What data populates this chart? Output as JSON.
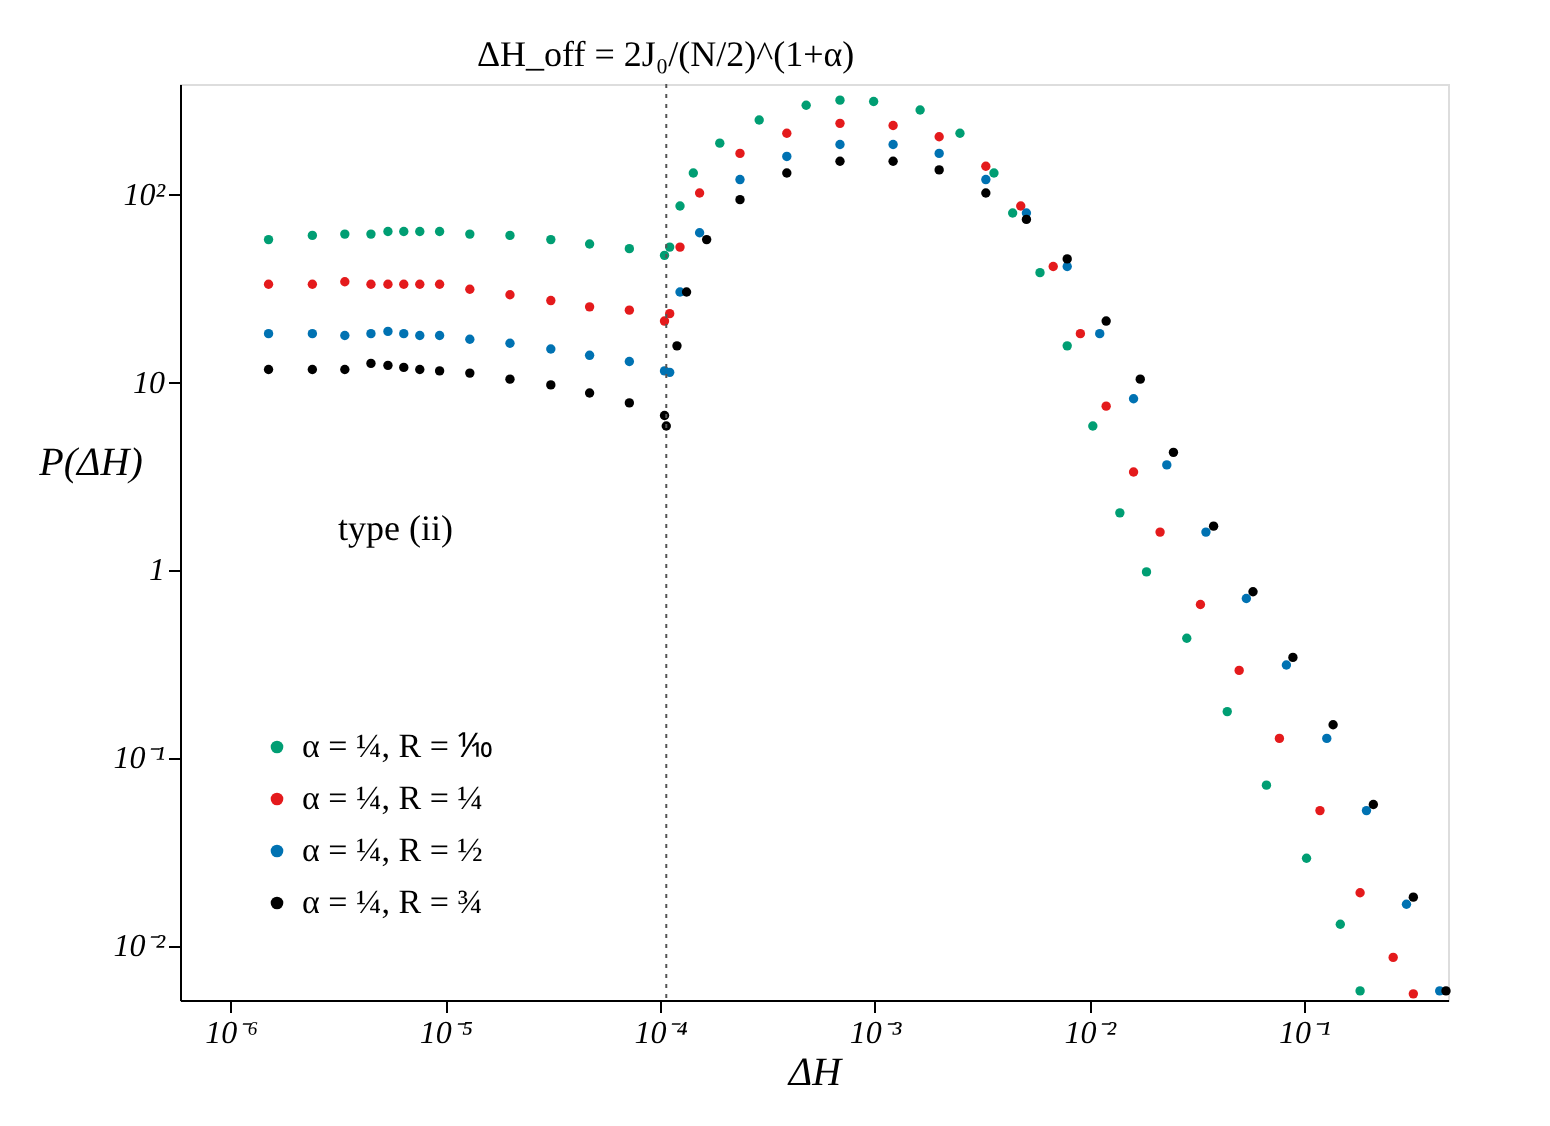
{
  "chart_data": {
    "type": "scatter",
    "xlabel": "ΔH",
    "ylabel": "P(ΔH)",
    "log": "xy",
    "grid": false,
    "legend": "bottom left",
    "marker": "circle",
    "xlim": [
      5.8e-07,
      0.47
    ],
    "ylim": [
      0.0051,
      384
    ],
    "xticks": [
      {
        "value": 1e-06,
        "label": "10⁻⁶"
      },
      {
        "value": 1e-05,
        "label": "10⁻⁵"
      },
      {
        "value": 0.0001,
        "label": "10⁻⁴"
      },
      {
        "value": 0.001,
        "label": "10⁻³"
      },
      {
        "value": 0.01,
        "label": "10⁻²"
      },
      {
        "value": 0.1,
        "label": "10⁻¹"
      }
    ],
    "yticks": [
      {
        "value": 0.01,
        "label": "10⁻²"
      },
      {
        "value": 0.1,
        "label": "10⁻¹"
      },
      1,
      10,
      {
        "value": 100,
        "label": "10²"
      }
    ],
    "ref_lines": [
      {
        "axis": "x",
        "value": 0.000107,
        "line_style": "dotted",
        "color": "#555555"
      }
    ],
    "annotations": [
      "ΔH_off = 2J₀/(N/2)^(1+α)",
      "type (ii)"
    ],
    "series": [
      {
        "name": "α = ¼, R = ⅒",
        "color": "#009e73",
        "x": [
          1.5e-06,
          2.4e-06,
          3.4e-06,
          4.5e-06,
          5.4e-06,
          6.4e-06,
          7.6e-06,
          9.4e-06,
          1.3e-05,
          2e-05,
          3.1e-05,
          4.7e-05,
          7.2e-05,
          0.000105,
          0.000111,
          0.000124,
          0.000143,
          0.00019,
          0.00029,
          0.00048,
          0.00069,
          0.00099,
          0.00163,
          0.0025,
          0.0036,
          0.0044,
          0.0059,
          0.0079,
          0.0104,
          0.0139,
          0.0185,
          0.0285,
          0.044,
          0.067,
          0.103,
          0.148,
          0.183
        ],
        "values": [
          57,
          60,
          61,
          61,
          63,
          63,
          63,
          63,
          61,
          60,
          57,
          54,
          51,
          47,
          52,
          86,
          129,
          186,
          247,
          296,
          315,
          310,
          279,
          210,
          129,
          79,
          38,
          15.5,
          5.8,
          2.0,
          0.97,
          0.43,
          0.175,
          0.071,
          0.029,
          0.0129,
          0.0057
        ]
      },
      {
        "name": "α = ¼, R = ¼",
        "color": "#e41a1c",
        "x": [
          1.5e-06,
          2.4e-06,
          3.4e-06,
          4.5e-06,
          5.4e-06,
          6.4e-06,
          7.6e-06,
          9.4e-06,
          1.3e-05,
          2e-05,
          3.1e-05,
          4.7e-05,
          7.2e-05,
          0.000105,
          0.000111,
          0.000124,
          0.000153,
          0.000236,
          0.00039,
          0.00069,
          0.00122,
          0.002,
          0.0033,
          0.0048,
          0.0068,
          0.0091,
          0.012,
          0.0161,
          0.0214,
          0.033,
          0.05,
          0.077,
          0.119,
          0.183,
          0.261,
          0.324
        ],
        "values": [
          33,
          33,
          34,
          33,
          33,
          33,
          33,
          33,
          31,
          29,
          27,
          25,
          24,
          21,
          23,
          52,
          101,
          164,
          210,
          237,
          231,
          201,
          140,
          86,
          41,
          18,
          7.4,
          3.3,
          1.58,
          0.65,
          0.29,
          0.126,
          0.052,
          0.019,
          0.0086,
          0.0055
        ]
      },
      {
        "name": "α = ¼, R = ½",
        "color": "#0072b2",
        "x": [
          1.5e-06,
          2.4e-06,
          3.4e-06,
          4.5e-06,
          5.4e-06,
          6.4e-06,
          7.6e-06,
          9.4e-06,
          1.3e-05,
          2e-05,
          3.1e-05,
          4.7e-05,
          7.2e-05,
          0.000105,
          0.000111,
          0.000124,
          0.000153,
          0.000236,
          0.00039,
          0.00069,
          0.00122,
          0.002,
          0.0033,
          0.0051,
          0.0079,
          0.0112,
          0.0161,
          0.023,
          0.035,
          0.054,
          0.083,
          0.128,
          0.196,
          0.301,
          0.43
        ],
        "values": [
          18,
          18,
          17.6,
          18,
          18.5,
          18,
          17.6,
          17.6,
          16.8,
          16,
          14.9,
          13.8,
          12.8,
          11.4,
          11.2,
          30,
          62,
          119,
          158,
          183,
          183,
          164,
          119,
          79,
          41,
          18,
          8.1,
          3.6,
          1.58,
          0.7,
          0.31,
          0.126,
          0.052,
          0.0165,
          0.0057
        ]
      },
      {
        "name": "α = ¼, R = ¾",
        "color": "#000000",
        "x": [
          1.5e-06,
          2.4e-06,
          3.4e-06,
          4.5e-06,
          5.4e-06,
          6.4e-06,
          7.6e-06,
          9.4e-06,
          1.3e-05,
          2e-05,
          3.1e-05,
          4.7e-05,
          7.2e-05,
          0.000105,
          0.000107,
          0.00012,
          0.000133,
          0.000165,
          0.000236,
          0.00039,
          0.00069,
          0.00122,
          0.002,
          0.0033,
          0.0051,
          0.0079,
          0.012,
          0.0173,
          0.0247,
          0.038,
          0.058,
          0.089,
          0.137,
          0.211,
          0.324,
          0.46
        ],
        "values": [
          11.6,
          11.6,
          11.6,
          12.5,
          12.2,
          11.9,
          11.6,
          11.4,
          11.1,
          10.3,
          9.6,
          8.7,
          7.7,
          6.6,
          5.8,
          15.5,
          30,
          57,
          93,
          129,
          149,
          149,
          134,
          101,
          73,
          45,
          21,
          10.3,
          4.2,
          1.7,
          0.76,
          0.34,
          0.149,
          0.056,
          0.018,
          0.0057
        ]
      }
    ]
  }
}
